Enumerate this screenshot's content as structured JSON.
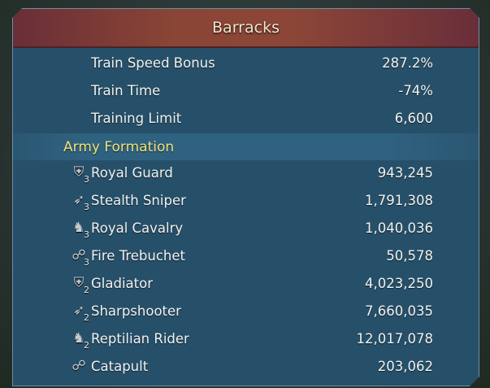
{
  "header": {
    "title": "Barracks"
  },
  "stats": [
    {
      "label": "Train Speed Bonus",
      "value": "287.2%"
    },
    {
      "label": "Train Time",
      "value": "-74%"
    },
    {
      "label": "Training Limit",
      "value": "6,600"
    }
  ],
  "army": {
    "title": "Army Formation",
    "troops": [
      {
        "name": "Royal Guard",
        "count": "943,245",
        "icon": "infantry-shield-icon",
        "glyph": "⛨",
        "tier": "3"
      },
      {
        "name": "Stealth Sniper",
        "count": "1,791,308",
        "icon": "archer-bow-icon",
        "glyph": "➶",
        "tier": "3"
      },
      {
        "name": "Royal Cavalry",
        "count": "1,040,036",
        "icon": "cavalry-horse-icon",
        "glyph": "♞",
        "tier": "3"
      },
      {
        "name": "Fire Trebuchet",
        "count": "50,578",
        "icon": "siege-icon",
        "glyph": "☍",
        "tier": "3"
      },
      {
        "name": "Gladiator",
        "count": "4,023,250",
        "icon": "infantry-shield-icon",
        "glyph": "⛨",
        "tier": "2"
      },
      {
        "name": "Sharpshooter",
        "count": "7,660,035",
        "icon": "archer-bow-icon",
        "glyph": "➶",
        "tier": "2"
      },
      {
        "name": "Reptilian Rider",
        "count": "12,017,078",
        "icon": "cavalry-horse-icon",
        "glyph": "♞",
        "tier": "2"
      },
      {
        "name": "Catapult",
        "count": "203,062",
        "icon": "siege-icon",
        "glyph": "☍"
      }
    ]
  }
}
